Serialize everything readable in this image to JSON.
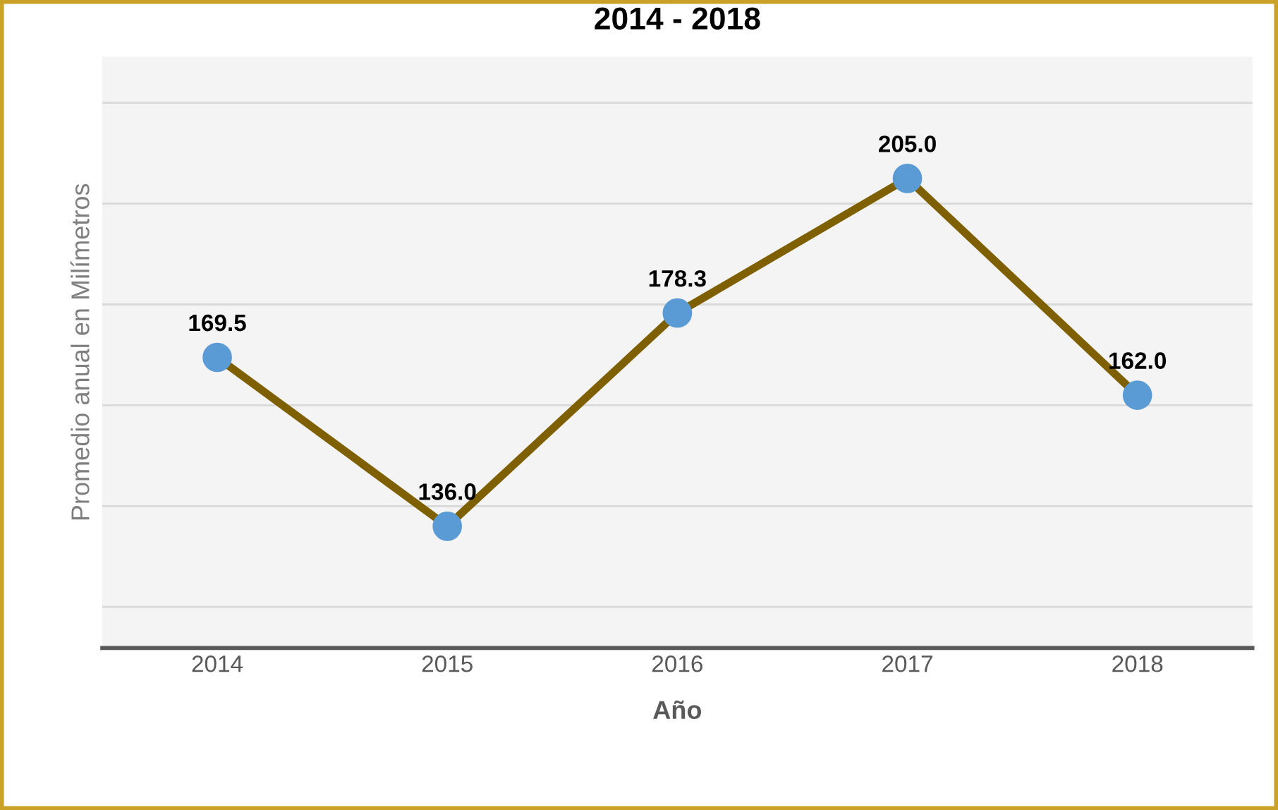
{
  "chart_data": {
    "type": "line",
    "title": "2014 - 2018",
    "xlabel": "Año",
    "ylabel": "Promedio anual en Milímetros",
    "categories": [
      "2014",
      "2015",
      "2016",
      "2017",
      "2018"
    ],
    "series": [
      {
        "color": "#7f6000",
        "colors": [
          "#5b9bd5",
          "#5b9bd5",
          "#5b9bd5",
          "#5b9bd5",
          "#5b9bd5"
        ],
        "values": [
          169.5,
          136.0,
          178.3,
          205.0,
          162.0
        ],
        "value_labels": [
          "169.5",
          "136.0",
          "178.3",
          "205.0",
          "162.0"
        ]
      }
    ],
    "marker": "circle",
    "data_labels": true,
    "grid": "y",
    "tick_labels": "x",
    "legend": false
  }
}
